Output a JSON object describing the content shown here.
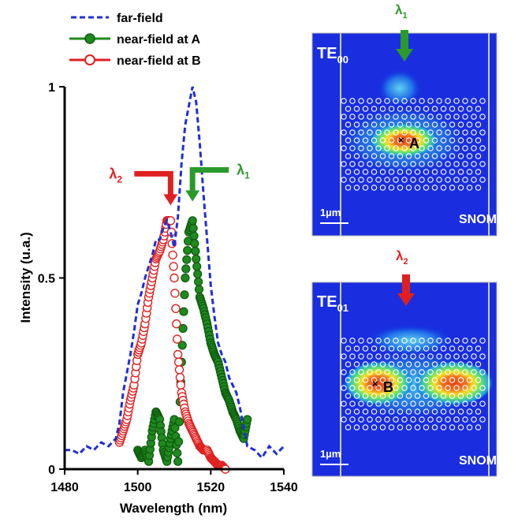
{
  "chart_data": {
    "type": "line",
    "xlabel": "Wavelength (nm)",
    "ylabel": "Intensity (u.a.)",
    "xlim": [
      1480,
      1540
    ],
    "ylim": [
      0,
      1
    ],
    "x_ticks": [
      "1480",
      "1500",
      "1520",
      "1540"
    ],
    "y_ticks": [
      "0",
      "0.5",
      "1"
    ],
    "legend_position": "top-left",
    "series": [
      {
        "name": "far-field",
        "style": "dashed",
        "color": "#1f2fd6",
        "x": [
          1480,
          1482,
          1484,
          1486,
          1488,
          1490,
          1492,
          1494,
          1495,
          1496,
          1497,
          1498,
          1499,
          1500,
          1501,
          1502,
          1503,
          1504,
          1505,
          1506,
          1507,
          1508,
          1509,
          1510,
          1511,
          1512,
          1513,
          1514,
          1515,
          1516,
          1517,
          1518,
          1519,
          1520,
          1521,
          1522,
          1523,
          1524,
          1525,
          1526,
          1527,
          1528,
          1530,
          1532,
          1534,
          1536,
          1538,
          1540
        ],
        "y": [
          0.05,
          0.05,
          0.04,
          0.06,
          0.05,
          0.07,
          0.06,
          0.08,
          0.12,
          0.2,
          0.25,
          0.3,
          0.36,
          0.43,
          0.46,
          0.5,
          0.53,
          0.56,
          0.6,
          0.6,
          0.63,
          0.65,
          0.62,
          0.58,
          0.66,
          0.8,
          0.9,
          0.95,
          1.0,
          0.96,
          0.85,
          0.72,
          0.6,
          0.48,
          0.4,
          0.33,
          0.3,
          0.28,
          0.24,
          0.22,
          0.2,
          0.16,
          0.06,
          0.05,
          0.03,
          0.06,
          0.04,
          0.06
        ]
      },
      {
        "name": "near-field at A",
        "style": "filled-circles",
        "color": "#1f8a1f",
        "x": [
          1500,
          1501,
          1502,
          1503,
          1504,
          1505,
          1506,
          1507,
          1508,
          1509,
          1510,
          1511,
          1512,
          1513,
          1514,
          1515,
          1516,
          1517,
          1518,
          1519,
          1520,
          1521,
          1522,
          1523,
          1524,
          1525,
          1526,
          1527,
          1528,
          1529,
          1530
        ],
        "y": [
          0.05,
          0.03,
          0.05,
          0.02,
          0.1,
          0.15,
          0.13,
          0.05,
          0.02,
          0.08,
          0.13,
          0.02,
          0.28,
          0.5,
          0.62,
          0.65,
          0.55,
          0.45,
          0.42,
          0.38,
          0.33,
          0.3,
          0.28,
          0.24,
          0.2,
          0.18,
          0.15,
          0.13,
          0.1,
          0.08,
          0.13
        ]
      },
      {
        "name": "near-field at B",
        "style": "open-circles",
        "color": "#e02020",
        "x": [
          1495,
          1496,
          1497,
          1498,
          1499,
          1500,
          1501,
          1502,
          1503,
          1504,
          1505,
          1506,
          1507,
          1508,
          1509,
          1510,
          1511,
          1512,
          1513,
          1514,
          1515,
          1516,
          1517,
          1518,
          1519,
          1520,
          1521,
          1522,
          1523,
          1524
        ],
        "y": [
          0.07,
          0.1,
          0.13,
          0.18,
          0.22,
          0.3,
          0.33,
          0.38,
          0.45,
          0.5,
          0.55,
          0.57,
          0.6,
          0.65,
          0.65,
          0.5,
          0.3,
          0.2,
          0.15,
          0.12,
          0.1,
          0.08,
          0.06,
          0.05,
          0.05,
          0.03,
          0.02,
          0.01,
          0.01,
          0.0
        ]
      }
    ],
    "annotations": [
      {
        "base": "λ",
        "sub": "1",
        "color": "#2a9a2a",
        "target_x": 1515,
        "target_y": 0.7
      },
      {
        "base": "λ",
        "sub": "2",
        "color": "#e02020",
        "target_x": 1509,
        "target_y": 0.69
      }
    ]
  },
  "panels": [
    {
      "mode_base": "TE",
      "mode_sub": "00",
      "point": "A",
      "scale": "1µm",
      "technique": "SNOM",
      "arrow_base": "λ",
      "arrow_sub": "1",
      "arrow_color": "#2a9a2a"
    },
    {
      "mode_base": "TE",
      "mode_sub": "01",
      "point": "B",
      "scale": "1µm",
      "technique": "SNOM",
      "arrow_base": "λ",
      "arrow_sub": "2",
      "arrow_color": "#e02020"
    }
  ]
}
